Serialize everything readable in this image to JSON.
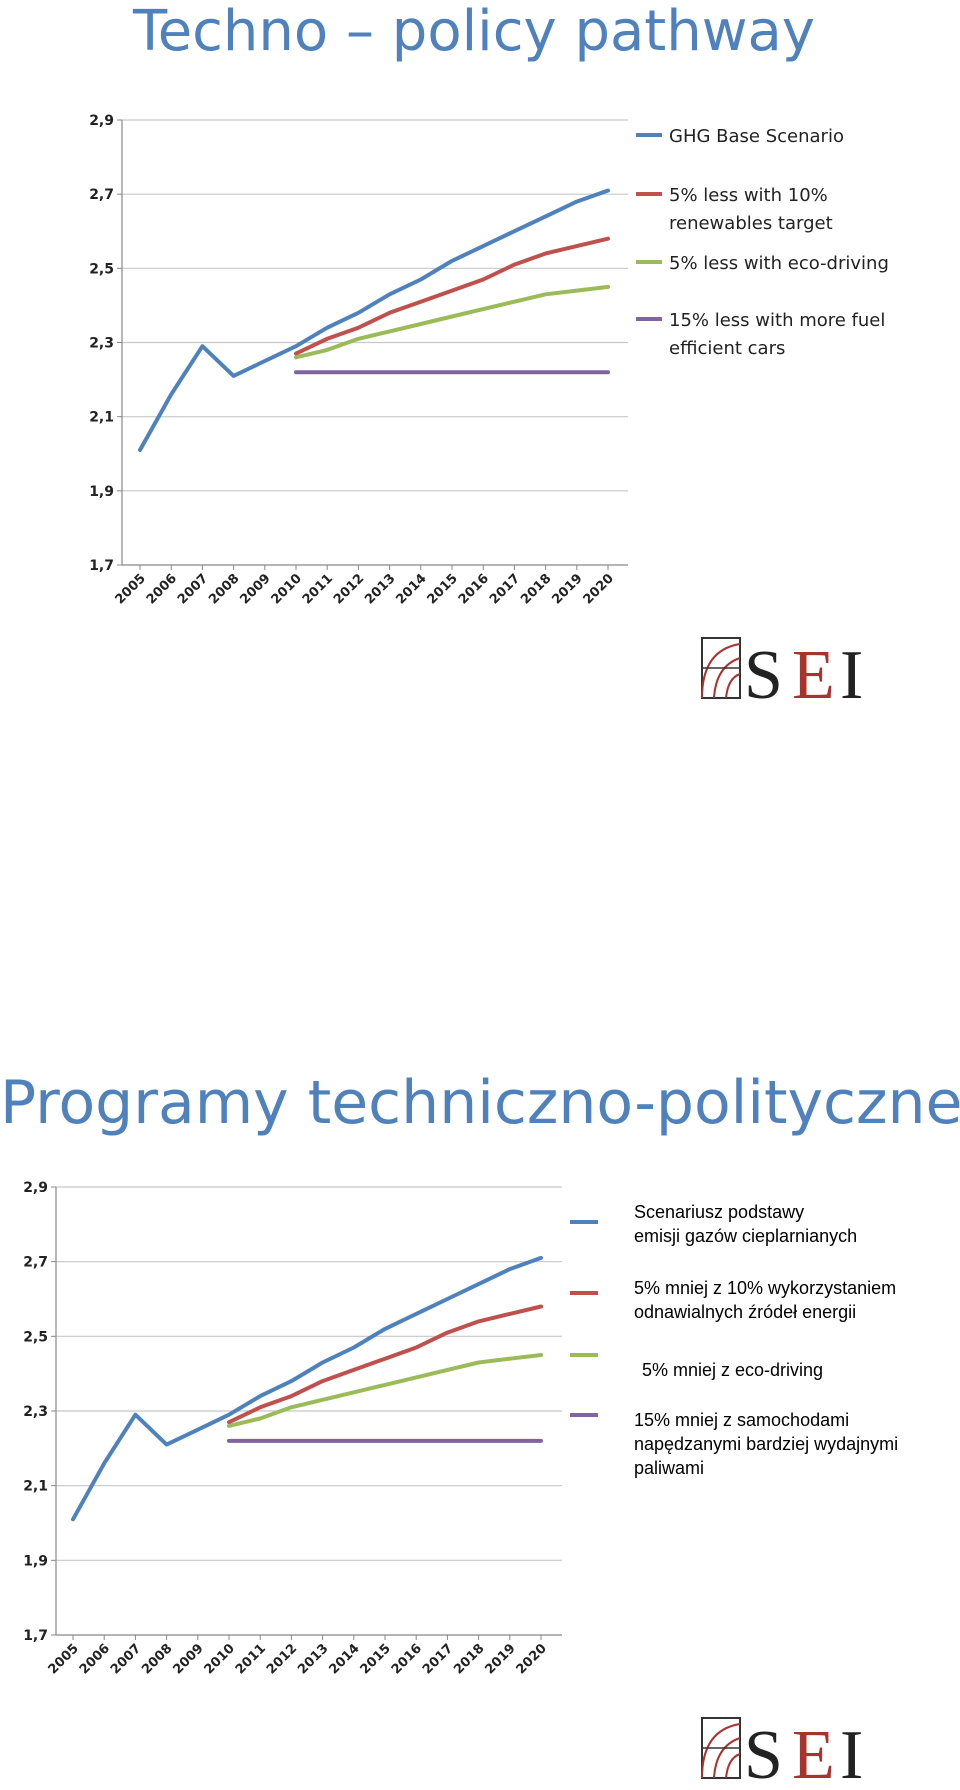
{
  "slide1": {
    "title": "Techno – policy pathway",
    "legend": [
      {
        "lines": [
          "GHG Base Scenario"
        ]
      },
      {
        "lines": [
          "5% less with 10%",
          "renewables target"
        ]
      },
      {
        "lines": [
          "5% less with eco-driving"
        ]
      },
      {
        "lines": [
          "15% less with more fuel",
          "efficient cars"
        ]
      }
    ]
  },
  "slide2": {
    "title": "Programy techniczno-polityczne",
    "legend": [
      {
        "line1": "Scenariusz podstawy",
        "line2": "emisji gazów cieplarnianych"
      },
      {
        "line1": "5% mniej z 10% wykorzystaniem",
        "line2": "odnawialnych źródeł energii"
      },
      {
        "line1": "5% mniej z eco-driving",
        "line2": ""
      },
      {
        "line1": "15% mniej z samochodami",
        "line2": "napędzanymi bardziej wydajnymi",
        "line3": "paliwami"
      }
    ]
  },
  "logo": {
    "text": "SEI",
    "text_colors": [
      "#222222",
      "#a8322d",
      "#222222"
    ]
  },
  "chart_data": [
    {
      "type": "line",
      "x": [
        2005,
        2006,
        2007,
        2008,
        2009,
        2010,
        2011,
        2012,
        2013,
        2014,
        2015,
        2016,
        2017,
        2018,
        2019,
        2020
      ],
      "y_ticks": [
        "1,7",
        "1,9",
        "2,1",
        "2,3",
        "2,5",
        "2,7",
        "2,9"
      ],
      "ylim": [
        1.7,
        2.9
      ],
      "grid": true,
      "legend_position": "right",
      "series": [
        {
          "name": "GHG Base Scenario",
          "color": "#4f81bd",
          "values": [
            2.01,
            2.16,
            2.29,
            2.21,
            2.25,
            2.29,
            2.34,
            2.38,
            2.43,
            2.47,
            2.52,
            2.56,
            2.6,
            2.64,
            2.68,
            2.71
          ]
        },
        {
          "name": "5% less with 10% renewables target",
          "color": "#c0504d",
          "values": [
            null,
            null,
            null,
            null,
            null,
            2.27,
            2.31,
            2.34,
            2.38,
            2.41,
            2.44,
            2.47,
            2.51,
            2.54,
            2.56,
            2.58
          ]
        },
        {
          "name": "5% less with eco-driving",
          "color": "#9bbb59",
          "values": [
            null,
            null,
            null,
            null,
            null,
            2.26,
            2.28,
            2.31,
            2.33,
            2.35,
            2.37,
            2.39,
            2.41,
            2.43,
            2.44,
            2.45
          ]
        },
        {
          "name": "15% less with more fuel efficient cars",
          "color": "#8064a2",
          "values": [
            null,
            null,
            null,
            null,
            null,
            2.22,
            2.22,
            2.22,
            2.22,
            2.22,
            2.22,
            2.22,
            2.22,
            2.22,
            2.22,
            2.22
          ]
        }
      ]
    },
    {
      "type": "line",
      "x": [
        2005,
        2006,
        2007,
        2008,
        2009,
        2010,
        2011,
        2012,
        2013,
        2014,
        2015,
        2016,
        2017,
        2018,
        2019,
        2020
      ],
      "y_ticks": [
        "1,7",
        "1,9",
        "2,1",
        "2,3",
        "2,5",
        "2,7",
        "2,9"
      ],
      "ylim": [
        1.7,
        2.9
      ],
      "grid": true,
      "legend_position": "right",
      "series": [
        {
          "name": "Scenariusz podstawy emisji gazów cieplarnianych",
          "color": "#4f81bd",
          "values": [
            2.01,
            2.16,
            2.29,
            2.21,
            2.25,
            2.29,
            2.34,
            2.38,
            2.43,
            2.47,
            2.52,
            2.56,
            2.6,
            2.64,
            2.68,
            2.71
          ]
        },
        {
          "name": "5% mniej z 10% wykorzystaniem odnawialnych źródeł energii",
          "color": "#c0504d",
          "values": [
            null,
            null,
            null,
            null,
            null,
            2.27,
            2.31,
            2.34,
            2.38,
            2.41,
            2.44,
            2.47,
            2.51,
            2.54,
            2.56,
            2.58
          ]
        },
        {
          "name": "5% mniej z eco-driving",
          "color": "#9bbb59",
          "values": [
            null,
            null,
            null,
            null,
            null,
            2.26,
            2.28,
            2.31,
            2.33,
            2.35,
            2.37,
            2.39,
            2.41,
            2.43,
            2.44,
            2.45
          ]
        },
        {
          "name": "15% mniej z samochodami napędzanymi bardziej wydajnymi paliwami",
          "color": "#8064a2",
          "values": [
            null,
            null,
            null,
            null,
            null,
            2.22,
            2.22,
            2.22,
            2.22,
            2.22,
            2.22,
            2.22,
            2.22,
            2.22,
            2.22,
            2.22
          ]
        }
      ]
    }
  ]
}
